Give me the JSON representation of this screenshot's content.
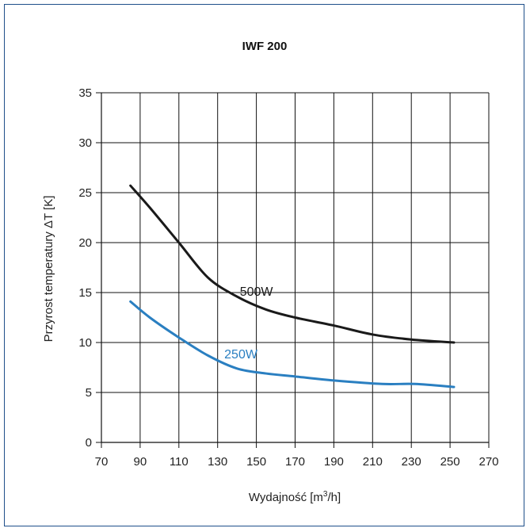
{
  "chart_data": {
    "type": "line",
    "title": "IWF 200",
    "xlabel_main": "Wydajność [m",
    "xlabel_sup": "3",
    "xlabel_end": "/h]",
    "ylabel": "Przyrost temperatury ΔT [K]",
    "xlim": [
      70,
      270
    ],
    "ylim": [
      0,
      35
    ],
    "xticks": [
      70,
      90,
      110,
      130,
      150,
      170,
      190,
      210,
      230,
      250,
      270
    ],
    "yticks": [
      0,
      5,
      10,
      15,
      20,
      25,
      30,
      35
    ],
    "grid": true,
    "series": [
      {
        "name": "500W",
        "color": "#1a1a1a",
        "x": [
          85,
          95,
          110,
          125,
          140,
          155,
          170,
          190,
          210,
          230,
          252
        ],
        "y": [
          25.7,
          23.5,
          20,
          16.5,
          14.6,
          13.3,
          12.5,
          11.7,
          10.8,
          10.3,
          10.0
        ]
      },
      {
        "name": "250W",
        "color": "#2a7fc1",
        "x": [
          85,
          95,
          110,
          125,
          140,
          155,
          170,
          190,
          215,
          232,
          252
        ],
        "y": [
          14.1,
          12.5,
          10.5,
          8.7,
          7.4,
          6.9,
          6.6,
          6.2,
          5.85,
          5.85,
          5.55
        ]
      }
    ]
  }
}
